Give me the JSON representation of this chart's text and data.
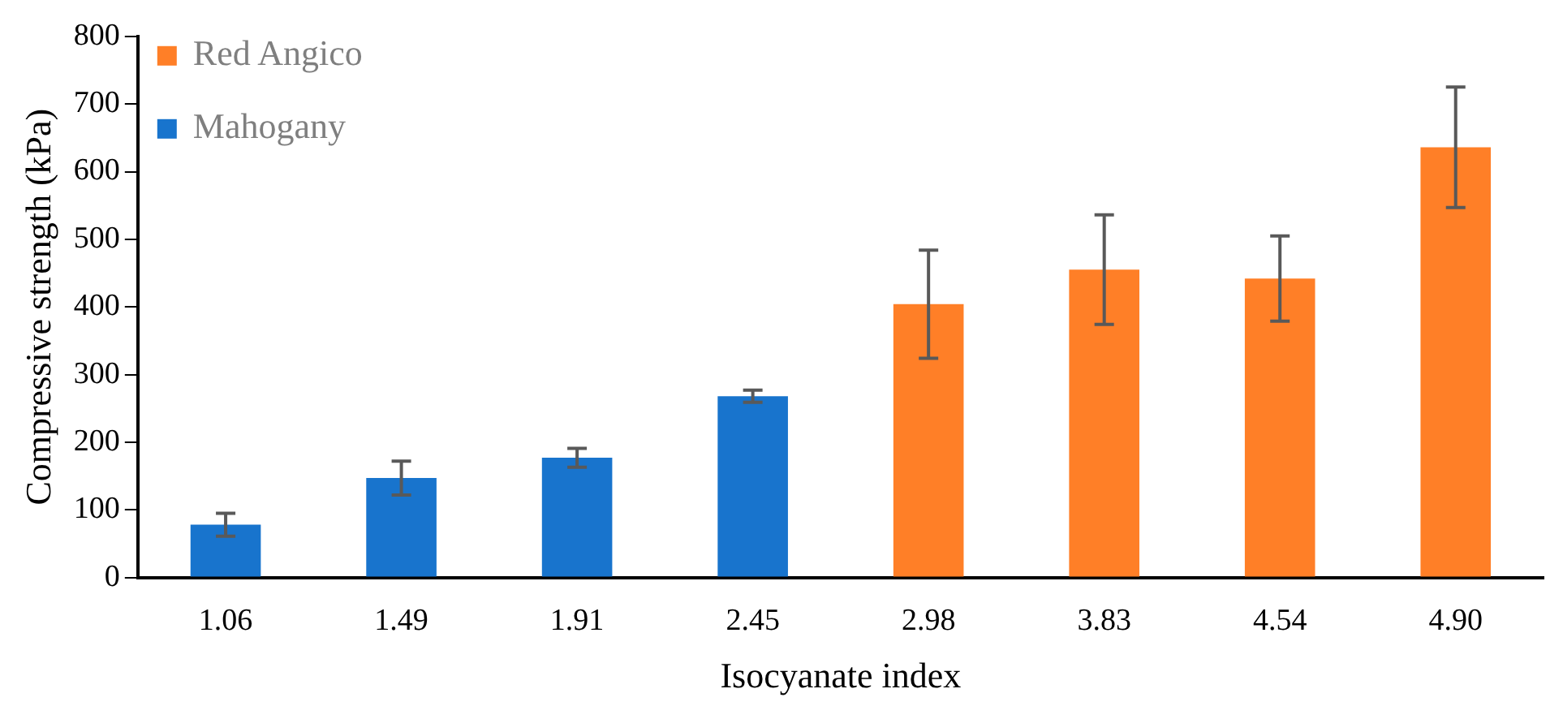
{
  "chart_data": {
    "type": "bar",
    "xlabel": "Isocyanate index",
    "ylabel": "Compressive strength (kPa)",
    "categories": [
      "1.06",
      "1.49",
      "1.91",
      "2.45",
      "2.98",
      "3.83",
      "4.54",
      "4.90"
    ],
    "series": [
      {
        "name": "Red Angico",
        "color": "#ff7f27",
        "values": [
          null,
          null,
          null,
          null,
          404,
          455,
          442,
          636
        ],
        "errors": [
          null,
          null,
          null,
          null,
          80,
          81,
          63,
          89
        ]
      },
      {
        "name": "Mahogany",
        "color": "#1874cd",
        "values": [
          78,
          147,
          177,
          268,
          null,
          null,
          null,
          null
        ],
        "errors": [
          17,
          25,
          14,
          9,
          null,
          null,
          null,
          null
        ]
      }
    ],
    "ylim": [
      0,
      800
    ],
    "yticks": [
      0,
      100,
      200,
      300,
      400,
      500,
      600,
      700,
      800
    ],
    "grid": false,
    "legend": "top left"
  }
}
